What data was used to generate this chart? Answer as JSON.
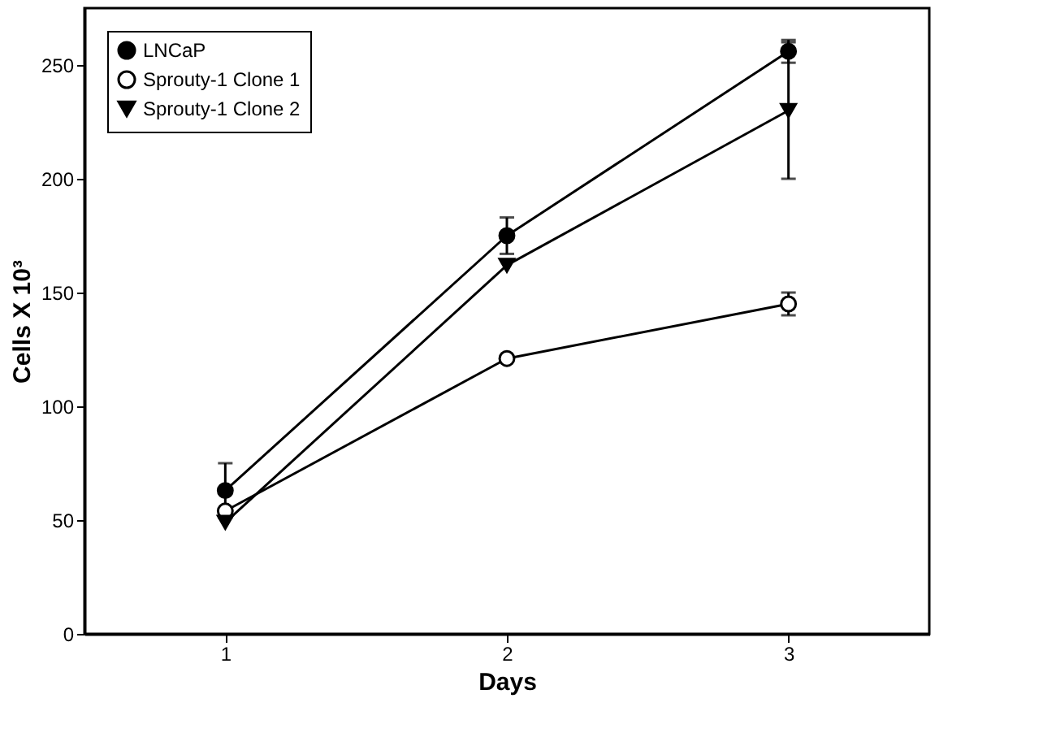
{
  "chart_data": {
    "type": "line",
    "xlabel": "Days",
    "ylabel": "Cells X 10³",
    "x": [
      1,
      2,
      3
    ],
    "xlim": [
      0.5,
      3.5
    ],
    "xticks": [
      1,
      2,
      3
    ],
    "ylim": [
      0,
      275
    ],
    "yticks": [
      0,
      50,
      100,
      150,
      200,
      250
    ],
    "grid": false,
    "legend": "top left",
    "line_style": "solid",
    "series": [
      {
        "name": "LNCaP",
        "color": "#000000",
        "marker": "circle",
        "values": [
          63,
          175,
          256
        ],
        "errors": [
          12,
          8,
          5
        ]
      },
      {
        "name": "Sprouty-1 Clone 1",
        "color": "#000000",
        "marker": "circle",
        "values": [
          54,
          121,
          145
        ],
        "errors": [
          null,
          null,
          5
        ]
      },
      {
        "name": "Sprouty-1 Clone 2",
        "color": "#000000",
        "marker": "triangle",
        "values": [
          49,
          162,
          230
        ],
        "errors": [
          null,
          null,
          30
        ]
      }
    ]
  }
}
